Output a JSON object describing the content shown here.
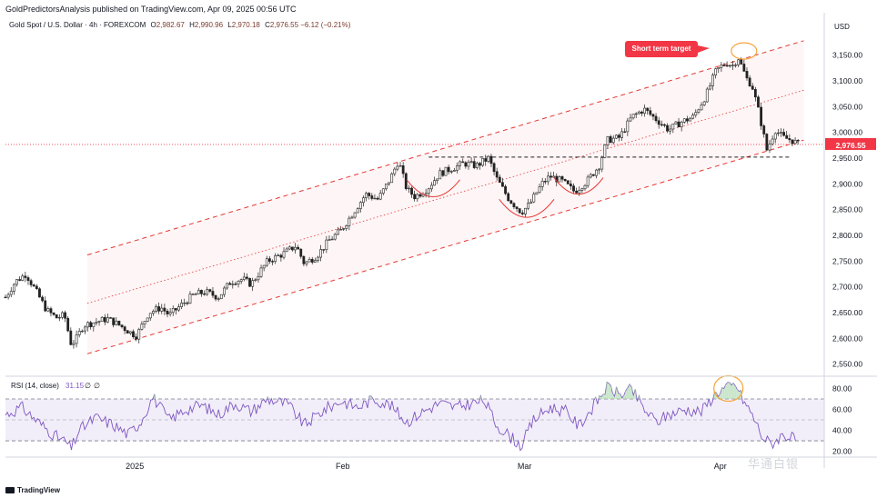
{
  "header": {
    "publisher": "GoldPredictorsAnalysis published on TradingView.com, Apr 09, 2025 00:56 UTC",
    "symbol": "Gold Spot / U.S. Dollar · 4h · FOREXCOM",
    "ohlc": [
      {
        "k": "O",
        "v": "2,982.67"
      },
      {
        "k": "H",
        "v": "2,990.96"
      },
      {
        "k": "L",
        "v": "2,970.18"
      },
      {
        "k": "C",
        "v": "2,976.55 −6.12 (−0.21%)"
      }
    ],
    "currency": "USD"
  },
  "annotation": {
    "label": "Short term target"
  },
  "footer": {
    "brand": "TradingView",
    "watermark": "华通白银"
  },
  "colors": {
    "up": "#26a69a",
    "down": "#ef5350",
    "candle": "#222222",
    "channel": "#e53935",
    "rsi_line": "#7e57c2",
    "rsi_band": "#ede7f6",
    "price_label": "#f23645",
    "ellipse": "#f7a23a"
  },
  "chart_data": [
    {
      "type": "candlestick",
      "title": "",
      "ylim": [
        2530,
        3190
      ],
      "yticks": [
        2550,
        2600,
        2650,
        2700,
        2750,
        2800,
        2850,
        2900,
        2950,
        3000,
        3050,
        3100,
        3150
      ],
      "ytick_labels": [
        "2,550.00",
        "2,600.00",
        "2,650.00",
        "2,700.00",
        "2,750.00",
        "2,800.00",
        "2,850.00",
        "2,900.00",
        "2,950.00",
        "3,000.00",
        "3,050.00",
        "3,100.00",
        "3,150.00"
      ],
      "x_labels": [
        {
          "label": "2025",
          "t": 0.158
        },
        {
          "label": "Feb",
          "t": 0.412
        },
        {
          "label": "Mar",
          "t": 0.634
        },
        {
          "label": "Apr",
          "t": 0.873
        }
      ],
      "last_price": 2976.55,
      "last_price_label": "2,976.55",
      "path": [
        {
          "t": 0.0,
          "v": 2680
        },
        {
          "t": 0.012,
          "v": 2710
        },
        {
          "t": 0.025,
          "v": 2725
        },
        {
          "t": 0.038,
          "v": 2690
        },
        {
          "t": 0.05,
          "v": 2655
        },
        {
          "t": 0.062,
          "v": 2640
        },
        {
          "t": 0.072,
          "v": 2645
        },
        {
          "t": 0.08,
          "v": 2590
        },
        {
          "t": 0.085,
          "v": 2595
        },
        {
          "t": 0.095,
          "v": 2625
        },
        {
          "t": 0.11,
          "v": 2632
        },
        {
          "t": 0.125,
          "v": 2638
        },
        {
          "t": 0.14,
          "v": 2625
        },
        {
          "t": 0.152,
          "v": 2612
        },
        {
          "t": 0.16,
          "v": 2605
        },
        {
          "t": 0.175,
          "v": 2650
        },
        {
          "t": 0.19,
          "v": 2660
        },
        {
          "t": 0.2,
          "v": 2645
        },
        {
          "t": 0.215,
          "v": 2665
        },
        {
          "t": 0.23,
          "v": 2685
        },
        {
          "t": 0.245,
          "v": 2690
        },
        {
          "t": 0.26,
          "v": 2680
        },
        {
          "t": 0.275,
          "v": 2710
        },
        {
          "t": 0.29,
          "v": 2715
        },
        {
          "t": 0.3,
          "v": 2705
        },
        {
          "t": 0.32,
          "v": 2750
        },
        {
          "t": 0.34,
          "v": 2765
        },
        {
          "t": 0.355,
          "v": 2780
        },
        {
          "t": 0.365,
          "v": 2745
        },
        {
          "t": 0.38,
          "v": 2760
        },
        {
          "t": 0.395,
          "v": 2790
        },
        {
          "t": 0.41,
          "v": 2810
        },
        {
          "t": 0.425,
          "v": 2845
        },
        {
          "t": 0.44,
          "v": 2880
        },
        {
          "t": 0.455,
          "v": 2870
        },
        {
          "t": 0.47,
          "v": 2910
        },
        {
          "t": 0.48,
          "v": 2945
        },
        {
          "t": 0.49,
          "v": 2890
        },
        {
          "t": 0.5,
          "v": 2875
        },
        {
          "t": 0.515,
          "v": 2890
        },
        {
          "t": 0.53,
          "v": 2920
        },
        {
          "t": 0.545,
          "v": 2930
        },
        {
          "t": 0.56,
          "v": 2940
        },
        {
          "t": 0.575,
          "v": 2935
        },
        {
          "t": 0.59,
          "v": 2950
        },
        {
          "t": 0.6,
          "v": 2910
        },
        {
          "t": 0.615,
          "v": 2870
        },
        {
          "t": 0.63,
          "v": 2845
        },
        {
          "t": 0.64,
          "v": 2860
        },
        {
          "t": 0.655,
          "v": 2900
        },
        {
          "t": 0.665,
          "v": 2915
        },
        {
          "t": 0.68,
          "v": 2905
        },
        {
          "t": 0.695,
          "v": 2885
        },
        {
          "t": 0.71,
          "v": 2905
        },
        {
          "t": 0.725,
          "v": 2935
        },
        {
          "t": 0.735,
          "v": 2985
        },
        {
          "t": 0.75,
          "v": 2990
        },
        {
          "t": 0.765,
          "v": 3030
        },
        {
          "t": 0.78,
          "v": 3045
        },
        {
          "t": 0.795,
          "v": 3025
        },
        {
          "t": 0.81,
          "v": 3005
        },
        {
          "t": 0.825,
          "v": 3020
        },
        {
          "t": 0.84,
          "v": 3030
        },
        {
          "t": 0.855,
          "v": 3070
        },
        {
          "t": 0.868,
          "v": 3120
        },
        {
          "t": 0.88,
          "v": 3135
        },
        {
          "t": 0.888,
          "v": 3130
        },
        {
          "t": 0.895,
          "v": 3145
        },
        {
          "t": 0.9,
          "v": 3125
        },
        {
          "t": 0.905,
          "v": 3105
        },
        {
          "t": 0.912,
          "v": 3090
        },
        {
          "t": 0.92,
          "v": 3040
        },
        {
          "t": 0.93,
          "v": 2965
        },
        {
          "t": 0.94,
          "v": 3005
        },
        {
          "t": 0.95,
          "v": 2990
        },
        {
          "t": 0.96,
          "v": 2985
        },
        {
          "t": 0.968,
          "v": 2978
        },
        {
          "t": 1.0,
          "v": 2976.55
        }
      ],
      "channel": {
        "upper": [
          [
            0.1,
            2762
          ],
          [
            0.975,
            3178
          ]
        ],
        "middle": [
          [
            0.1,
            2668
          ],
          [
            0.975,
            3082
          ]
        ],
        "lower": [
          [
            0.1,
            2570
          ],
          [
            0.975,
            2985
          ]
        ]
      },
      "support": {
        "value": 2952,
        "t": [
          0.517,
          0.96
        ]
      },
      "arcs": [
        {
          "t1": 0.49,
          "t2": 0.555,
          "top": 2908,
          "bottom": 2875
        },
        {
          "t1": 0.603,
          "t2": 0.67,
          "top": 2870,
          "bottom": 2835
        },
        {
          "t1": 0.67,
          "t2": 0.73,
          "top": 2912,
          "bottom": 2880
        }
      ],
      "target_ellipse": {
        "t": 0.902,
        "v": 3158
      }
    },
    {
      "type": "line",
      "name": "RSI (14, close)",
      "label": "RSI (14, close)",
      "value_label": "31.15",
      "extra_labels": [
        "∅",
        "∅"
      ],
      "ylim": [
        17,
        90
      ],
      "yticks": [
        20,
        40,
        60,
        80
      ],
      "ytick_labels": [
        "20.00",
        "40.00",
        "60.00",
        "80.00"
      ],
      "bands": [
        30,
        50,
        70
      ],
      "path": [
        {
          "t": 0.0,
          "v": 55
        },
        {
          "t": 0.02,
          "v": 62
        },
        {
          "t": 0.04,
          "v": 48
        },
        {
          "t": 0.06,
          "v": 35
        },
        {
          "t": 0.075,
          "v": 28
        },
        {
          "t": 0.08,
          "v": 22
        },
        {
          "t": 0.09,
          "v": 40
        },
        {
          "t": 0.11,
          "v": 52
        },
        {
          "t": 0.13,
          "v": 46
        },
        {
          "t": 0.15,
          "v": 36
        },
        {
          "t": 0.165,
          "v": 48
        },
        {
          "t": 0.18,
          "v": 72
        },
        {
          "t": 0.2,
          "v": 50
        },
        {
          "t": 0.22,
          "v": 60
        },
        {
          "t": 0.24,
          "v": 64
        },
        {
          "t": 0.26,
          "v": 55
        },
        {
          "t": 0.28,
          "v": 66
        },
        {
          "t": 0.3,
          "v": 58
        },
        {
          "t": 0.32,
          "v": 70
        },
        {
          "t": 0.345,
          "v": 65
        },
        {
          "t": 0.365,
          "v": 45
        },
        {
          "t": 0.39,
          "v": 60
        },
        {
          "t": 0.41,
          "v": 68
        },
        {
          "t": 0.43,
          "v": 62
        },
        {
          "t": 0.45,
          "v": 70
        },
        {
          "t": 0.47,
          "v": 64
        },
        {
          "t": 0.49,
          "v": 48
        },
        {
          "t": 0.51,
          "v": 58
        },
        {
          "t": 0.53,
          "v": 66
        },
        {
          "t": 0.55,
          "v": 62
        },
        {
          "t": 0.57,
          "v": 66
        },
        {
          "t": 0.585,
          "v": 68
        },
        {
          "t": 0.6,
          "v": 45
        },
        {
          "t": 0.615,
          "v": 35
        },
        {
          "t": 0.63,
          "v": 25
        },
        {
          "t": 0.645,
          "v": 50
        },
        {
          "t": 0.665,
          "v": 62
        },
        {
          "t": 0.685,
          "v": 58
        },
        {
          "t": 0.7,
          "v": 44
        },
        {
          "t": 0.72,
          "v": 65
        },
        {
          "t": 0.735,
          "v": 82
        },
        {
          "t": 0.75,
          "v": 74
        },
        {
          "t": 0.765,
          "v": 79
        },
        {
          "t": 0.78,
          "v": 60
        },
        {
          "t": 0.795,
          "v": 48
        },
        {
          "t": 0.81,
          "v": 55
        },
        {
          "t": 0.83,
          "v": 60
        },
        {
          "t": 0.85,
          "v": 58
        },
        {
          "t": 0.868,
          "v": 76
        },
        {
          "t": 0.88,
          "v": 81
        },
        {
          "t": 0.893,
          "v": 83
        },
        {
          "t": 0.9,
          "v": 70
        },
        {
          "t": 0.912,
          "v": 55
        },
        {
          "t": 0.925,
          "v": 33
        },
        {
          "t": 0.935,
          "v": 27
        },
        {
          "t": 0.95,
          "v": 36
        },
        {
          "t": 0.965,
          "v": 31
        }
      ]
    }
  ]
}
